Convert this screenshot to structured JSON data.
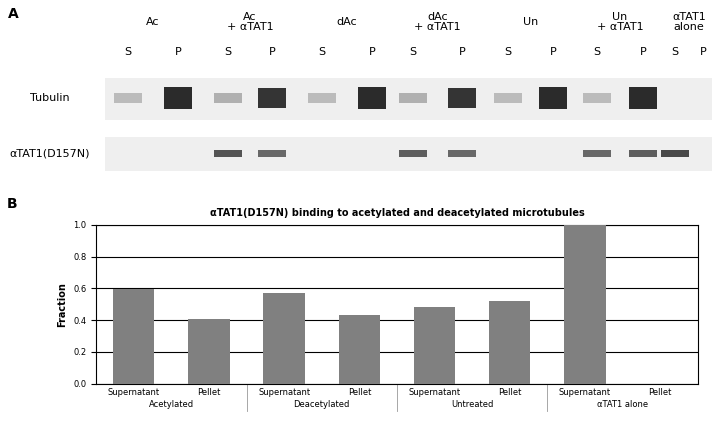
{
  "panel_a": {
    "label": "A",
    "lanes": [
      {
        "label": "Ac",
        "fractions": [
          "S",
          "P"
        ]
      },
      {
        "label": "Ac\n+ αTAT1",
        "fractions": [
          "S",
          "P"
        ]
      },
      {
        "label": "dAc",
        "fractions": [
          "S",
          "P"
        ]
      },
      {
        "label": "dAc\n+ αTAT1",
        "fractions": [
          "S",
          "P"
        ]
      },
      {
        "label": "Un",
        "fractions": [
          "S",
          "P"
        ]
      },
      {
        "label": "Un\n+ αTAT1",
        "fractions": [
          "S",
          "P"
        ]
      },
      {
        "label": "αTAT1\nalone",
        "fractions": [
          "S",
          "P"
        ]
      }
    ],
    "rows": [
      "Tubulin",
      "αTAT1(D157N)"
    ]
  },
  "chart_data": {
    "label": "B",
    "type": "bar",
    "title": "αTAT1(D157N) binding to acetylated and deacetylated microtubules",
    "y_label": "Fraction",
    "categories": [
      "Supernatant",
      "Pellet",
      "Supernatant",
      "Pellet",
      "Supernatant",
      "Pellet",
      "Supernatant",
      "Pellet"
    ],
    "groups": [
      "Acetylated",
      "Deacetylated",
      "Untreated",
      "αTAT1 alone"
    ],
    "values": [
      0.595,
      0.405,
      0.57,
      0.43,
      0.48,
      0.52,
      1.0,
      0.0
    ],
    "color": "#808080",
    "ylim": [
      0,
      1
    ],
    "yticks": [
      {
        "value": 0,
        "label": "0.0"
      },
      {
        "value": 0.2,
        "label": "0.2"
      },
      {
        "value": 0.4,
        "label": "0.4"
      },
      {
        "value": 0.6,
        "label": "0.6"
      },
      {
        "value": 0.8,
        "label": "0.8"
      },
      {
        "value": 1,
        "label": "1.0"
      }
    ],
    "grid": true
  }
}
